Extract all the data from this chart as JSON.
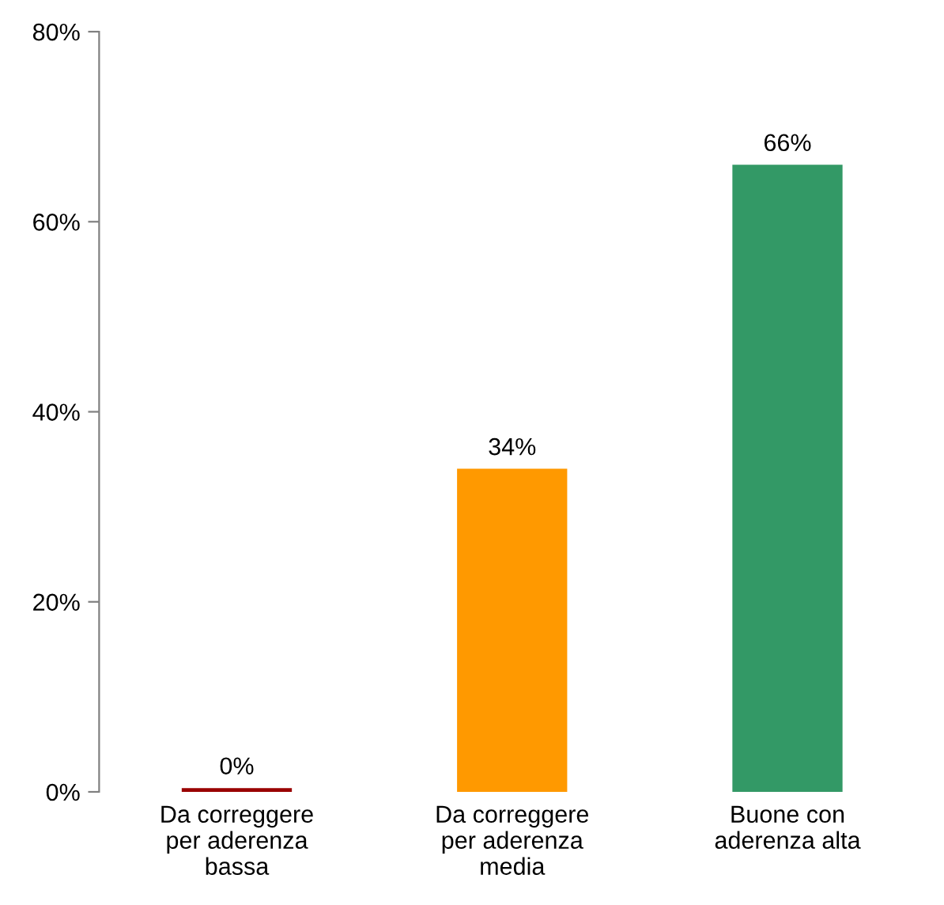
{
  "chart_data": {
    "type": "bar",
    "categories": [
      "Da correggere\nper aderenza\nbassa",
      "Da correggere\nper aderenza\nmedia",
      "Buone con\naderenza alta"
    ],
    "values": [
      0.4,
      34,
      66
    ],
    "colors": [
      "#990000",
      "#ff9900",
      "#339966"
    ],
    "value_labels": [
      "0%",
      "34%",
      "66%"
    ],
    "ylim": [
      0,
      80
    ],
    "yticks": [
      {
        "value": 0,
        "label": "0%"
      },
      {
        "value": 20,
        "label": "20%"
      },
      {
        "value": 40,
        "label": "40%"
      },
      {
        "value": 60,
        "label": "60%"
      },
      {
        "value": 80,
        "label": "80%"
      }
    ],
    "grid": false,
    "legend": false
  }
}
